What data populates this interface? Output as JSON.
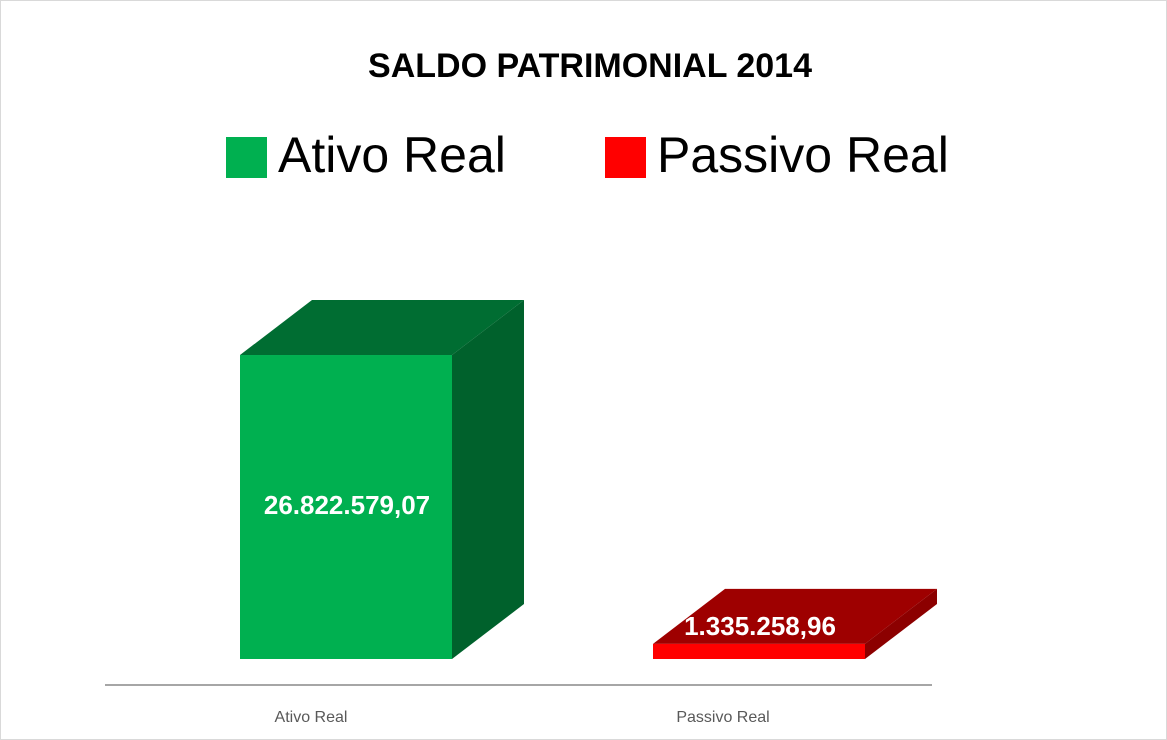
{
  "chart_data": {
    "type": "bar3d",
    "title": "SALDO PATRIMONIAL 2014",
    "categories": [
      "Ativo Real",
      "Passivo Real"
    ],
    "values": [
      26822579.07,
      1335258.96
    ],
    "value_labels": [
      "26.822.579,07",
      "1.335.258,96"
    ],
    "colors": [
      "#00b050",
      "#ff0000"
    ],
    "ylim": [
      0,
      30000000
    ]
  }
}
